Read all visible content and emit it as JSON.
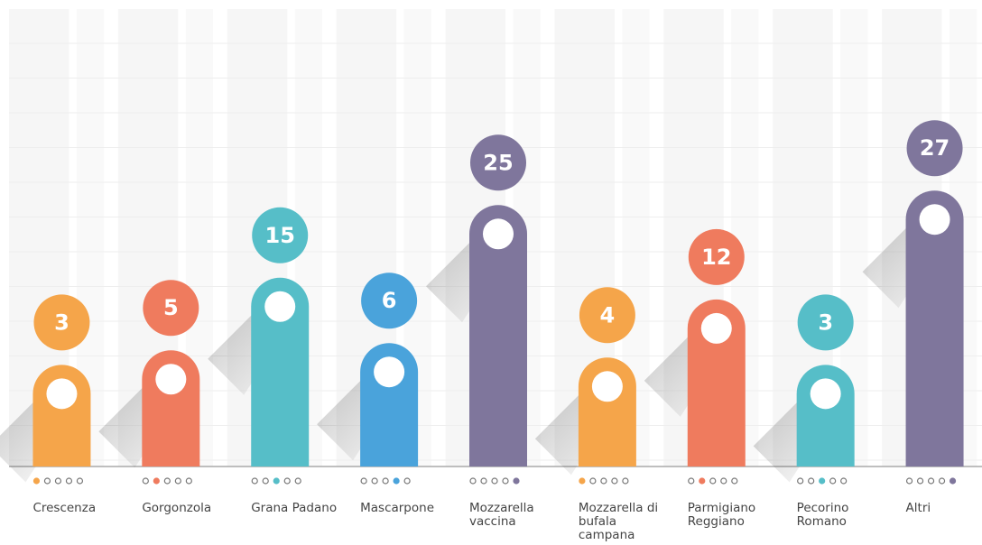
{
  "chart_data": {
    "type": "bar",
    "categories": [
      "Crescenza",
      "Gorgonzola",
      "Grana Padano",
      "Mascarpone",
      "Mozzarella vaccina",
      "Mozzarella di bufala campana",
      "Parmigiano Reggiano",
      "Pecorino Romano",
      "Altri"
    ],
    "values": [
      3,
      5,
      15,
      6,
      25,
      4,
      12,
      3,
      27
    ],
    "colors": [
      "#f5a54a",
      "#ef7b5e",
      "#56bec8",
      "#4aa3db",
      "#7f769c",
      "#f5a54a",
      "#ef7b5e",
      "#56bec8",
      "#7f769c"
    ],
    "ylim": [
      -11,
      52
    ]
  }
}
